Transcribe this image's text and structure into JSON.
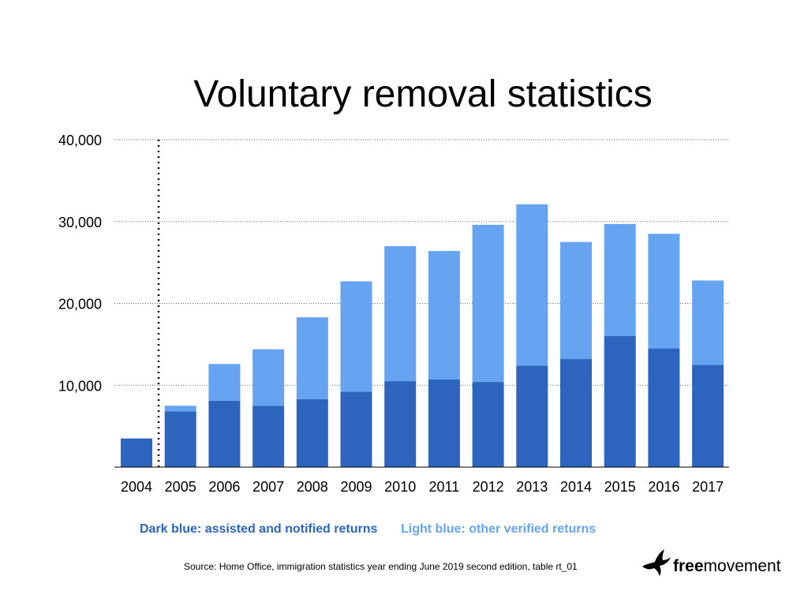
{
  "chart_data": {
    "type": "bar",
    "stacked": true,
    "title": "Voluntary removal statistics",
    "categories": [
      "2004",
      "2005",
      "2006",
      "2007",
      "2008",
      "2009",
      "2010",
      "2011",
      "2012",
      "2013",
      "2014",
      "2015",
      "2016",
      "2017"
    ],
    "series": [
      {
        "name": "Dark blue: assisted and notified returns",
        "color": "#2c64be",
        "values": [
          3500,
          6800,
          8100,
          7500,
          8300,
          9200,
          10500,
          10700,
          10400,
          12400,
          13200,
          16000,
          14500,
          12500
        ]
      },
      {
        "name": "Light blue: other verified returns",
        "color": "#66a3f0",
        "values": [
          0,
          700,
          4500,
          6900,
          10000,
          13500,
          16500,
          15700,
          19200,
          19700,
          14300,
          13700,
          14000,
          10300
        ]
      }
    ],
    "ylim": [
      0,
      40000
    ],
    "yticks": [
      10000,
      20000,
      30000,
      40000
    ],
    "ytick_labels": [
      "10,000",
      "20,000",
      "30,000",
      "40,000"
    ],
    "grid": "horizontal dotted",
    "divider_after_category": "2004",
    "legend_position": "bottom"
  },
  "footer": {
    "source": "Source: Home Office, immigration statistics year ending June 2019 second edition, table rt_01",
    "logo_text_bold": "free",
    "logo_text_regular": "movement"
  }
}
